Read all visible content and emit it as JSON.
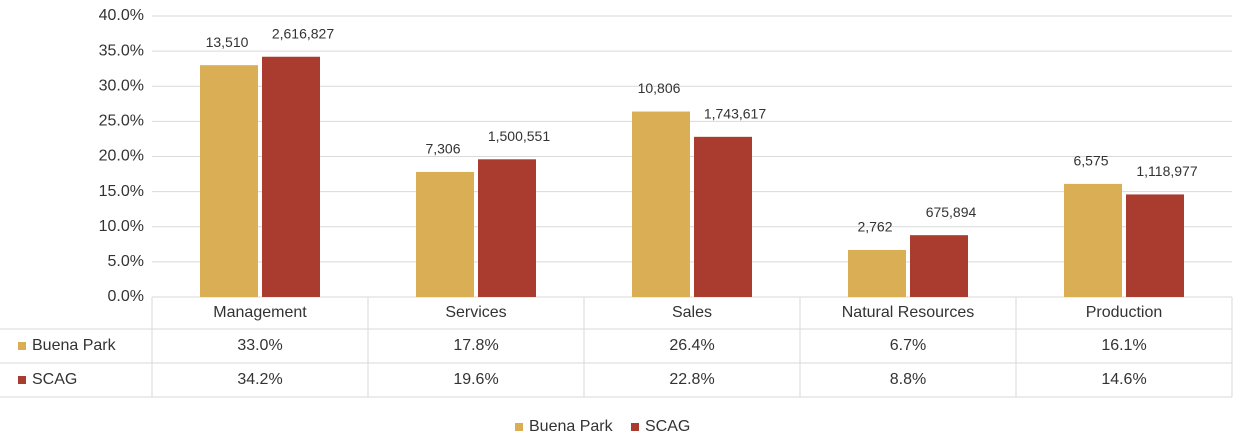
{
  "chart_data": {
    "type": "bar",
    "categories": [
      "Management",
      "Services",
      "Sales",
      "Natural Resources",
      "Production"
    ],
    "series": [
      {
        "name": "Buena Park",
        "color": "#d9ae55",
        "values": [
          33.0,
          17.8,
          26.4,
          6.7,
          16.1
        ],
        "value_labels": [
          "33.0%",
          "17.8%",
          "26.4%",
          "6.7%",
          "16.1%"
        ],
        "data_labels": [
          "13,510",
          "7,306",
          "10,806",
          "2,762",
          "6,575"
        ]
      },
      {
        "name": "SCAG",
        "color": "#a93b2f",
        "values": [
          34.2,
          19.6,
          22.8,
          8.8,
          14.6
        ],
        "value_labels": [
          "34.2%",
          "19.6%",
          "22.8%",
          "8.8%",
          "14.6%"
        ],
        "data_labels": [
          "2,616,827",
          "1,500,551",
          "1,743,617",
          "675,894",
          "1,118,977"
        ]
      }
    ],
    "ylim": [
      0,
      40
    ],
    "yticks": [
      {
        "value": 0,
        "label": "0.0%"
      },
      {
        "value": 5,
        "label": "5.0%"
      },
      {
        "value": 10,
        "label": "10.0%"
      },
      {
        "value": 15,
        "label": "15.0%"
      },
      {
        "value": 20,
        "label": "20.0%"
      },
      {
        "value": 25,
        "label": "25.0%"
      },
      {
        "value": 30,
        "label": "30.0%"
      },
      {
        "value": 35,
        "label": "35.0%"
      },
      {
        "value": 40,
        "label": "40.0%"
      }
    ],
    "grid": true,
    "legend": "bottom"
  }
}
